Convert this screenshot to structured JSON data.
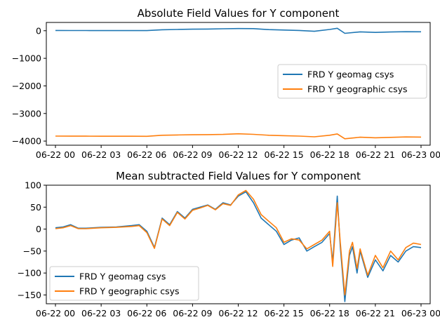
{
  "colors": {
    "series1": "#1f77b4",
    "series2": "#ff7f0e"
  },
  "chart_data": [
    {
      "type": "line",
      "title": "Absolute Field Values for Y component",
      "xlabel": "",
      "ylabel": "",
      "x_ticks": [
        "06-22 00",
        "06-22 03",
        "06-22 06",
        "06-22 09",
        "06-22 12",
        "06-22 15",
        "06-22 18",
        "06-22 21",
        "06-23 00"
      ],
      "x_range_hours": [
        -0.6,
        24.6
      ],
      "y_ticks": [
        0,
        -1000,
        -2000,
        -3000,
        -4000
      ],
      "y_tick_labels": [
        "0",
        "−1000",
        "−2000",
        "−3000",
        "−4000"
      ],
      "ylim": [
        -4150,
        300
      ],
      "grid": false,
      "legend": "center-right",
      "series": [
        {
          "name": "FRD Y geomag csys",
          "x": [
            0,
            1,
            2,
            3,
            4,
            5,
            6,
            7,
            8,
            9,
            10,
            11,
            12,
            13,
            14,
            15,
            16,
            17,
            18,
            18.5,
            19,
            20,
            21,
            22,
            23,
            24
          ],
          "y": [
            10,
            8,
            7,
            6,
            6,
            5,
            4,
            35,
            45,
            55,
            60,
            70,
            80,
            75,
            40,
            25,
            10,
            -20,
            45,
            90,
            -95,
            -40,
            -60,
            -45,
            -35,
            -38
          ]
        },
        {
          "name": "FRD Y geographic csys",
          "x": [
            0,
            1,
            2,
            3,
            4,
            5,
            6,
            7,
            8,
            9,
            10,
            11,
            12,
            13,
            14,
            15,
            16,
            17,
            18,
            18.5,
            19,
            20,
            21,
            22,
            23,
            24
          ],
          "y": [
            -3820,
            -3822,
            -3823,
            -3824,
            -3824,
            -3825,
            -3826,
            -3790,
            -3780,
            -3772,
            -3765,
            -3758,
            -3735,
            -3755,
            -3790,
            -3805,
            -3820,
            -3845,
            -3790,
            -3740,
            -3915,
            -3860,
            -3880,
            -3865,
            -3850,
            -3855
          ]
        }
      ]
    },
    {
      "type": "line",
      "title": "Mean subtracted Field Values for Y component",
      "xlabel": "",
      "ylabel": "",
      "x_ticks": [
        "06-22 00",
        "06-22 03",
        "06-22 06",
        "06-22 09",
        "06-22 12",
        "06-22 15",
        "06-22 18",
        "06-22 21",
        "06-23 00"
      ],
      "x_range_hours": [
        -0.6,
        24.6
      ],
      "y_ticks": [
        100,
        50,
        0,
        -50,
        -100,
        -150
      ],
      "y_tick_labels": [
        "100",
        "50",
        "0",
        "−50",
        "−100",
        "−150"
      ],
      "ylim": [
        -170,
        100
      ],
      "grid": false,
      "legend": "lower-left",
      "series": [
        {
          "name": "FRD Y geomag csys",
          "x": [
            0,
            0.5,
            1,
            1.5,
            2,
            3,
            4,
            5,
            5.5,
            6,
            6.5,
            7,
            7.5,
            8,
            8.5,
            9,
            9.5,
            10,
            10.5,
            11,
            11.5,
            12,
            12.5,
            13,
            13.5,
            14,
            14.5,
            15,
            15.5,
            16,
            16.5,
            17,
            17.5,
            18,
            18.2,
            18.5,
            18.7,
            19,
            19.3,
            19.5,
            19.8,
            20,
            20.5,
            21,
            21.5,
            22,
            22.5,
            23,
            23.5,
            24
          ],
          "y": [
            3,
            5,
            10,
            2,
            2,
            4,
            5,
            8,
            10,
            -5,
            -42,
            25,
            10,
            40,
            25,
            45,
            50,
            55,
            45,
            60,
            55,
            75,
            85,
            60,
            25,
            10,
            -5,
            -35,
            -25,
            -20,
            -50,
            -40,
            -30,
            -10,
            -75,
            75,
            -40,
            -165,
            -60,
            -40,
            -100,
            -50,
            -110,
            -70,
            -95,
            -60,
            -75,
            -50,
            -40,
            -42
          ]
        },
        {
          "name": "FRD Y geographic csys",
          "x": [
            0,
            0.5,
            1,
            1.5,
            2,
            3,
            4,
            5,
            5.5,
            6,
            6.5,
            7,
            7.5,
            8,
            8.5,
            9,
            9.5,
            10,
            10.5,
            11,
            11.5,
            12,
            12.5,
            13,
            13.5,
            14,
            14.5,
            15,
            15.5,
            16,
            16.5,
            17,
            17.5,
            18,
            18.2,
            18.5,
            18.7,
            19,
            19.3,
            19.5,
            19.8,
            20,
            20.5,
            21,
            21.5,
            22,
            22.5,
            23,
            23.5,
            24
          ],
          "y": [
            1,
            3,
            8,
            1,
            1,
            3,
            4,
            6,
            8,
            -8,
            -44,
            23,
            8,
            38,
            23,
            43,
            48,
            54,
            44,
            58,
            54,
            78,
            88,
            68,
            33,
            18,
            3,
            -30,
            -22,
            -25,
            -45,
            -35,
            -25,
            -5,
            -85,
            60,
            -30,
            -150,
            -50,
            -30,
            -90,
            -45,
            -105,
            -60,
            -88,
            -50,
            -70,
            -42,
            -32,
            -35
          ]
        }
      ]
    }
  ]
}
